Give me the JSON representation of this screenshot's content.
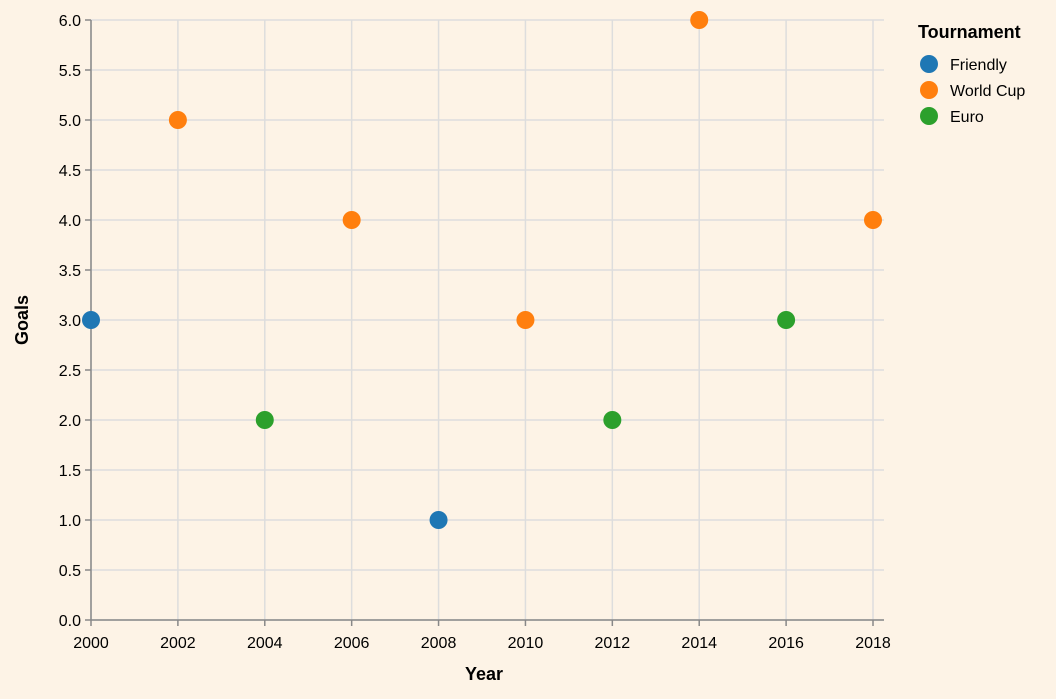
{
  "chart_data": {
    "type": "scatter",
    "title": "",
    "xlabel": "Year",
    "ylabel": "Goals",
    "xlim": [
      2000,
      2018
    ],
    "ylim": [
      0,
      6
    ],
    "x_ticks": [
      "2000",
      "2002",
      "2004",
      "2006",
      "2008",
      "2010",
      "2012",
      "2014",
      "2016",
      "2018"
    ],
    "y_ticks": [
      "0.0",
      "0.5",
      "1.0",
      "1.5",
      "2.0",
      "2.5",
      "3.0",
      "3.5",
      "4.0",
      "4.5",
      "5.0",
      "5.5",
      "6.0"
    ],
    "grid": true,
    "legend": {
      "title": "Tournament",
      "placement": "right"
    },
    "series": [
      {
        "name": "Friendly",
        "color": "#1f77b4",
        "points": [
          {
            "x": 2000,
            "y": 3
          },
          {
            "x": 2008,
            "y": 1
          }
        ]
      },
      {
        "name": "World Cup",
        "color": "#ff7f0e",
        "points": [
          {
            "x": 2002,
            "y": 5
          },
          {
            "x": 2006,
            "y": 4
          },
          {
            "x": 2010,
            "y": 3
          },
          {
            "x": 2014,
            "y": 6
          },
          {
            "x": 2018,
            "y": 4
          }
        ]
      },
      {
        "name": "Euro",
        "color": "#2ca02c",
        "points": [
          {
            "x": 2004,
            "y": 2
          },
          {
            "x": 2012,
            "y": 2
          },
          {
            "x": 2016,
            "y": 3
          }
        ]
      }
    ]
  }
}
